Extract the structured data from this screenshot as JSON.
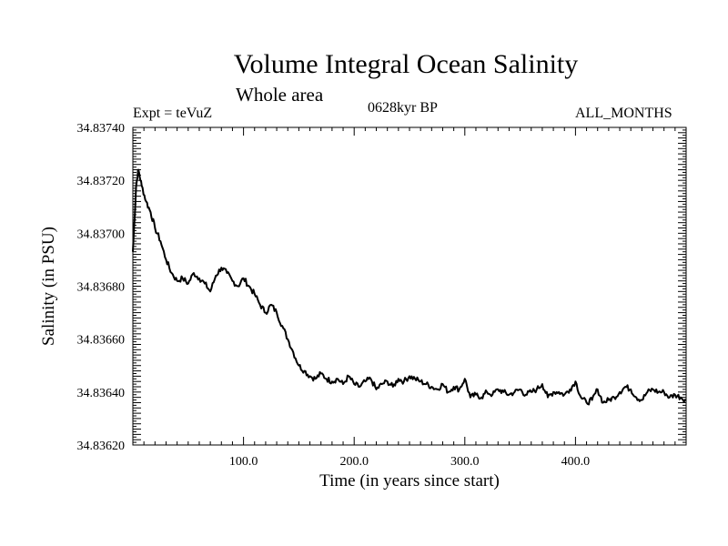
{
  "chart_data": {
    "type": "line",
    "title": "Volume Integral Ocean Salinity",
    "subtitle": "Whole area",
    "annotations": {
      "left": "Expt = teVuZ",
      "center": "0628kyr BP",
      "right": "ALL_MONTHS"
    },
    "xlabel": "Time (in years since start)",
    "ylabel": "Salinity (in PSU)",
    "xlim": [
      0,
      500
    ],
    "ylim": [
      34.8362,
      34.8374
    ],
    "xticks": [
      100,
      200,
      300,
      400
    ],
    "xtick_labels": [
      "100.0",
      "200.0",
      "300.0",
      "400.0"
    ],
    "yticks": [
      34.8362,
      34.8364,
      34.8366,
      34.8368,
      34.837,
      34.8372,
      34.8374
    ],
    "ytick_labels": [
      "34.83620",
      "34.83640",
      "34.83660",
      "34.83680",
      "34.83700",
      "34.83720",
      "34.83740"
    ],
    "grid": false,
    "series": [
      {
        "x": [
          0,
          3,
          5,
          8,
          12,
          16,
          20,
          25,
          30,
          35,
          40,
          45,
          50,
          55,
          60,
          65,
          70,
          75,
          80,
          85,
          90,
          95,
          100,
          105,
          110,
          115,
          120,
          125,
          130,
          135,
          140,
          145,
          150,
          155,
          160,
          165,
          170,
          175,
          180,
          185,
          190,
          195,
          200,
          205,
          210,
          215,
          220,
          225,
          230,
          235,
          240,
          245,
          250,
          255,
          260,
          265,
          270,
          275,
          280,
          285,
          290,
          295,
          300,
          305,
          310,
          315,
          320,
          325,
          330,
          335,
          340,
          345,
          350,
          355,
          360,
          365,
          370,
          375,
          380,
          385,
          390,
          395,
          400,
          405,
          410,
          415,
          420,
          425,
          430,
          435,
          440,
          445,
          450,
          455,
          460,
          465,
          470,
          475,
          480,
          485,
          490,
          495,
          500
        ],
        "y": [
          34.83693,
          34.83718,
          34.83724,
          34.83718,
          34.83712,
          34.83708,
          34.83702,
          34.83697,
          34.8369,
          34.83685,
          34.83682,
          34.83683,
          34.83681,
          34.83685,
          34.83683,
          34.83681,
          34.83678,
          34.83684,
          34.83687,
          34.83685,
          34.83682,
          34.8368,
          34.83683,
          34.8368,
          34.83677,
          34.83673,
          34.8367,
          34.83673,
          34.8367,
          34.83665,
          34.8366,
          34.83655,
          34.8365,
          34.83648,
          34.83646,
          34.83645,
          34.83647,
          34.83645,
          34.83644,
          34.83645,
          34.83643,
          34.83646,
          34.83643,
          34.83642,
          34.83644,
          34.83645,
          34.83641,
          34.83643,
          34.83644,
          34.83642,
          34.83645,
          34.83644,
          34.83646,
          34.83645,
          34.83644,
          34.83643,
          34.83642,
          34.83641,
          34.83643,
          34.8364,
          34.83642,
          34.83641,
          34.83645,
          34.83638,
          34.83639,
          34.83638,
          34.8364,
          34.83639,
          34.83641,
          34.8364,
          34.83639,
          34.8364,
          34.83641,
          34.83639,
          34.8364,
          34.83641,
          34.83643,
          34.83638,
          34.8364,
          34.8364,
          34.83639,
          34.83641,
          34.83644,
          34.83638,
          34.83636,
          34.83637,
          34.83641,
          34.83636,
          34.83637,
          34.83638,
          34.8364,
          34.83642,
          34.83641,
          34.83638,
          34.83637,
          34.8364,
          34.83641,
          34.8364,
          34.8364,
          34.83638,
          34.83639,
          34.83638,
          34.83637
        ]
      }
    ],
    "line_color": "#000000"
  }
}
